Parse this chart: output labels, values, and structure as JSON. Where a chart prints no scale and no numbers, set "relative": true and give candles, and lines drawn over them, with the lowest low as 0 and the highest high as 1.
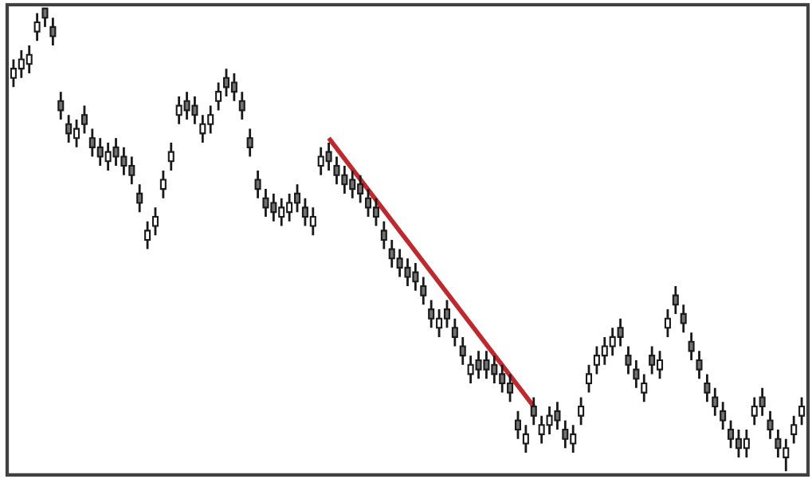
{
  "chart_data": {
    "type": "candlestick",
    "relative": true,
    "color": "#1a1a1a",
    "categories": [
      null,
      null,
      null,
      null,
      null,
      null,
      null,
      null,
      null,
      null,
      null,
      null,
      null,
      null,
      null,
      null,
      null,
      null,
      null,
      null,
      null,
      null,
      null,
      null,
      null,
      null,
      null,
      null,
      null,
      null,
      null,
      null,
      null,
      null,
      null,
      null,
      null,
      null,
      null,
      null,
      null,
      null,
      null,
      null,
      null,
      null,
      null,
      null,
      null,
      null,
      null,
      null,
      null,
      null,
      null,
      null,
      null,
      null,
      null,
      null,
      null,
      null,
      null,
      null,
      null,
      null,
      null,
      null,
      null,
      null,
      null,
      null,
      null,
      null,
      null,
      null,
      null,
      null,
      null,
      null,
      null,
      null,
      null,
      null,
      null,
      null,
      null,
      null,
      null,
      null,
      null,
      null,
      null,
      null,
      null,
      null,
      null,
      null,
      null,
      null,
      null
    ],
    "ohlc": [
      [
        0.85,
        0.89,
        0.83,
        0.87
      ],
      [
        0.87,
        0.91,
        0.85,
        0.89
      ],
      [
        0.88,
        0.92,
        0.86,
        0.9
      ],
      [
        0.95,
        0.99,
        0.93,
        0.97
      ],
      [
        1.0,
        1.0,
        0.96,
        0.98
      ],
      [
        0.96,
        0.98,
        0.92,
        0.94
      ],
      [
        0.8,
        0.82,
        0.76,
        0.78
      ],
      [
        0.75,
        0.77,
        0.71,
        0.73
      ],
      [
        0.72,
        0.76,
        0.7,
        0.74
      ],
      [
        0.77,
        0.79,
        0.73,
        0.75
      ],
      [
        0.72,
        0.74,
        0.68,
        0.7
      ],
      [
        0.7,
        0.72,
        0.66,
        0.68
      ],
      [
        0.67,
        0.71,
        0.65,
        0.69
      ],
      [
        0.7,
        0.72,
        0.66,
        0.68
      ],
      [
        0.68,
        0.7,
        0.64,
        0.66
      ],
      [
        0.66,
        0.68,
        0.62,
        0.64
      ],
      [
        0.6,
        0.62,
        0.56,
        0.58
      ],
      [
        0.5,
        0.54,
        0.48,
        0.52
      ],
      [
        0.53,
        0.57,
        0.51,
        0.55
      ],
      [
        0.61,
        0.65,
        0.59,
        0.63
      ],
      [
        0.67,
        0.71,
        0.65,
        0.69
      ],
      [
        0.77,
        0.81,
        0.75,
        0.79
      ],
      [
        0.8,
        0.82,
        0.76,
        0.78
      ],
      [
        0.79,
        0.81,
        0.75,
        0.77
      ],
      [
        0.73,
        0.77,
        0.71,
        0.75
      ],
      [
        0.75,
        0.79,
        0.73,
        0.77
      ],
      [
        0.8,
        0.84,
        0.78,
        0.82
      ],
      [
        0.85,
        0.87,
        0.81,
        0.83
      ],
      [
        0.84,
        0.86,
        0.8,
        0.82
      ],
      [
        0.8,
        0.82,
        0.76,
        0.78
      ],
      [
        0.72,
        0.74,
        0.68,
        0.7
      ],
      [
        0.63,
        0.65,
        0.59,
        0.61
      ],
      [
        0.59,
        0.61,
        0.55,
        0.57
      ],
      [
        0.58,
        0.6,
        0.54,
        0.56
      ],
      [
        0.55,
        0.59,
        0.53,
        0.57
      ],
      [
        0.56,
        0.6,
        0.54,
        0.58
      ],
      [
        0.6,
        0.62,
        0.56,
        0.58
      ],
      [
        0.57,
        0.59,
        0.53,
        0.55
      ],
      [
        0.53,
        0.57,
        0.51,
        0.55
      ],
      [
        0.66,
        0.7,
        0.64,
        0.68
      ],
      [
        0.69,
        0.71,
        0.65,
        0.67
      ],
      [
        0.66,
        0.68,
        0.62,
        0.64
      ],
      [
        0.64,
        0.66,
        0.6,
        0.62
      ],
      [
        0.63,
        0.65,
        0.59,
        0.61
      ],
      [
        0.62,
        0.64,
        0.58,
        0.6
      ],
      [
        0.59,
        0.61,
        0.55,
        0.57
      ],
      [
        0.57,
        0.59,
        0.53,
        0.55
      ],
      [
        0.52,
        0.54,
        0.48,
        0.5
      ],
      [
        0.48,
        0.5,
        0.44,
        0.46
      ],
      [
        0.46,
        0.48,
        0.42,
        0.44
      ],
      [
        0.44,
        0.46,
        0.4,
        0.42
      ],
      [
        0.43,
        0.45,
        0.39,
        0.41
      ],
      [
        0.4,
        0.42,
        0.36,
        0.38
      ],
      [
        0.35,
        0.37,
        0.31,
        0.33
      ],
      [
        0.31,
        0.35,
        0.29,
        0.33
      ],
      [
        0.35,
        0.37,
        0.31,
        0.33
      ],
      [
        0.31,
        0.33,
        0.27,
        0.29
      ],
      [
        0.27,
        0.29,
        0.23,
        0.25
      ],
      [
        0.21,
        0.25,
        0.19,
        0.23
      ],
      [
        0.24,
        0.26,
        0.2,
        0.22
      ],
      [
        0.24,
        0.26,
        0.2,
        0.22
      ],
      [
        0.23,
        0.25,
        0.19,
        0.21
      ],
      [
        0.21,
        0.23,
        0.17,
        0.19
      ],
      [
        0.19,
        0.21,
        0.15,
        0.17
      ],
      [
        0.11,
        0.13,
        0.07,
        0.09
      ],
      [
        0.06,
        0.1,
        0.04,
        0.08
      ],
      [
        0.14,
        0.16,
        0.1,
        0.12
      ],
      [
        0.08,
        0.12,
        0.06,
        0.1
      ],
      [
        0.1,
        0.14,
        0.08,
        0.12
      ],
      [
        0.13,
        0.15,
        0.09,
        0.11
      ],
      [
        0.09,
        0.11,
        0.05,
        0.07
      ],
      [
        0.06,
        0.1,
        0.04,
        0.08
      ],
      [
        0.12,
        0.16,
        0.1,
        0.14
      ],
      [
        0.19,
        0.23,
        0.17,
        0.21
      ],
      [
        0.23,
        0.27,
        0.21,
        0.25
      ],
      [
        0.25,
        0.29,
        0.23,
        0.27
      ],
      [
        0.27,
        0.31,
        0.25,
        0.29
      ],
      [
        0.31,
        0.33,
        0.27,
        0.29
      ],
      [
        0.25,
        0.27,
        0.21,
        0.23
      ],
      [
        0.22,
        0.24,
        0.18,
        0.2
      ],
      [
        0.17,
        0.21,
        0.15,
        0.19
      ],
      [
        0.25,
        0.27,
        0.21,
        0.23
      ],
      [
        0.22,
        0.26,
        0.2,
        0.24
      ],
      [
        0.31,
        0.35,
        0.29,
        0.33
      ],
      [
        0.38,
        0.4,
        0.34,
        0.36
      ],
      [
        0.34,
        0.36,
        0.3,
        0.32
      ],
      [
        0.28,
        0.3,
        0.24,
        0.26
      ],
      [
        0.24,
        0.26,
        0.2,
        0.22
      ],
      [
        0.19,
        0.21,
        0.15,
        0.17
      ],
      [
        0.16,
        0.18,
        0.12,
        0.14
      ],
      [
        0.13,
        0.15,
        0.09,
        0.11
      ],
      [
        0.09,
        0.11,
        0.05,
        0.07
      ],
      [
        0.07,
        0.09,
        0.03,
        0.05
      ],
      [
        0.05,
        0.09,
        0.03,
        0.07
      ],
      [
        0.12,
        0.16,
        0.1,
        0.14
      ],
      [
        0.16,
        0.18,
        0.12,
        0.14
      ],
      [
        0.11,
        0.13,
        0.07,
        0.09
      ],
      [
        0.07,
        0.09,
        0.03,
        0.05
      ],
      [
        0.03,
        0.07,
        0.0,
        0.05
      ],
      [
        0.08,
        0.12,
        0.06,
        0.1
      ],
      [
        0.12,
        0.16,
        0.1,
        0.14
      ]
    ],
    "series": [
      {
        "type": "line",
        "color": "#c0282d",
        "values": [
          null,
          null,
          null,
          null,
          null,
          null,
          null,
          null,
          null,
          null,
          null,
          null,
          null,
          null,
          null,
          null,
          null,
          null,
          null,
          null,
          null,
          null,
          null,
          null,
          null,
          null,
          null,
          null,
          null,
          null,
          null,
          null,
          null,
          null,
          null,
          null,
          null,
          null,
          null,
          null,
          0.72,
          null,
          null,
          null,
          null,
          null,
          null,
          null,
          null,
          null,
          null,
          null,
          null,
          null,
          null,
          null,
          null,
          null,
          null,
          null,
          null,
          null,
          null,
          null,
          null,
          null,
          0.14,
          null,
          null,
          null,
          null,
          null,
          null,
          null,
          null,
          null,
          null,
          null,
          null,
          null,
          null,
          null,
          null,
          null,
          null,
          null,
          null,
          null,
          null,
          null,
          null,
          null,
          null,
          null,
          null,
          null,
          null,
          null,
          null,
          null,
          null
        ]
      }
    ]
  }
}
